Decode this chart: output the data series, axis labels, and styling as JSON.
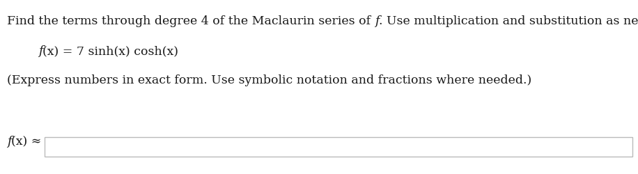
{
  "line1_before": "Find the terms through degree 4 of the Maclaurin series of ",
  "line1_italic": "f",
  "line1_after": ". Use multiplication and substitution as necessary.",
  "line2_italic_f": "f",
  "line2_rest": "(x) = 7 sinh(x) cosh(x)",
  "line3": "(Express numbers in exact form. Use symbolic notation and fractions where needed.)",
  "label_italic": "f",
  "label_rest": "(x) ≈",
  "background_color": "#ffffff",
  "text_color": "#1a1a1a",
  "box_fill": "#ffffff",
  "box_edge": "#bbbbbb",
  "font_size": 12.5
}
